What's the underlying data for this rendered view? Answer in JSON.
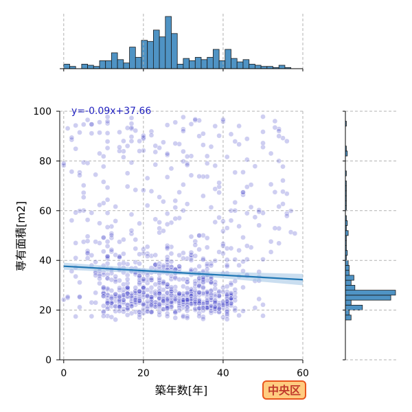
{
  "chart_data": {
    "type": "scatter",
    "title": "",
    "xlabel": "築年数[年]",
    "ylabel": "専有面積[m2]",
    "xlim": [
      -1,
      60
    ],
    "ylim": [
      0,
      100
    ],
    "x_ticks": [
      "0",
      "20",
      "40",
      "60"
    ],
    "y_ticks": [
      "0",
      "20",
      "40",
      "60",
      "80",
      "100"
    ],
    "grid": true,
    "regression": {
      "equation_label": "y=-0.09x+37.66",
      "slope": -0.09,
      "intercept": 37.66,
      "color": "#1f77b4",
      "band_color": "#a6c8e6"
    },
    "badge": "中央区",
    "marker_color": "#3a3ac8",
    "top_histogram": {
      "bin_start": 0,
      "bin_width": 1.5,
      "counts": [
        4,
        2,
        0,
        4,
        3,
        2,
        7,
        7,
        14,
        8,
        5,
        19,
        10,
        25,
        24,
        34,
        28,
        46,
        31,
        4,
        9,
        7,
        10,
        8,
        10,
        17,
        7,
        17,
        9,
        6,
        8,
        4,
        3,
        2,
        2,
        1,
        3,
        1
      ]
    },
    "right_histogram": {
      "bin_start": 0,
      "bin_width": 2,
      "counts": [
        0,
        0,
        0,
        0,
        0,
        0,
        0,
        0,
        6,
        4,
        18,
        6,
        48,
        53,
        10,
        6,
        9,
        4,
        4,
        3,
        1,
        2,
        1,
        1,
        1,
        3,
        1,
        2,
        1,
        0,
        1,
        1,
        1,
        1,
        1,
        1,
        0,
        1,
        0,
        0,
        0,
        2,
        1,
        0,
        0,
        0,
        0,
        1,
        0,
        0
      ]
    }
  }
}
